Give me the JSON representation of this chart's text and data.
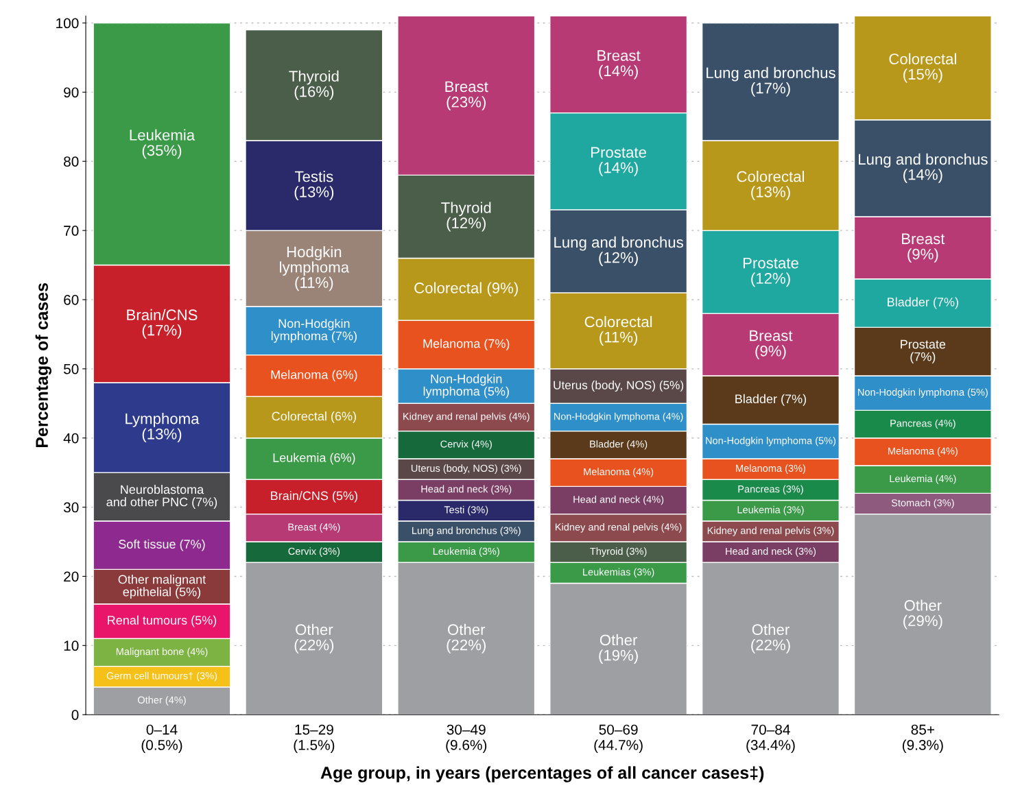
{
  "chart_data": {
    "type": "bar",
    "stacked": true,
    "xlabel": "Age group, in years (percentages of all cancer cases‡)",
    "ylabel": "Percentage of cases",
    "categories": [
      "0–14\n(0.5%)",
      "15–29\n(1.5%)",
      "30–49\n(9.6%)",
      "50–69\n(44.7%)",
      "70–84\n(34.4%)",
      "85+\n(9.3%)"
    ],
    "ylim": [
      0,
      101
    ],
    "yticks": [
      0,
      10,
      20,
      30,
      40,
      50,
      60,
      70,
      80,
      90,
      100
    ],
    "grid": "y",
    "legend": false,
    "series": [
      {
        "values": [
          4,
          22,
          22,
          19,
          22,
          29
        ],
        "colors": [
          "#9d9fa2",
          "#9d9fa2",
          "#9d9fa2",
          "#9d9fa2",
          "#9d9fa2",
          "#9d9fa2"
        ],
        "value_labels": [
          "Other (4%)",
          "Other\n(22%)",
          "Other\n(22%)",
          "Other\n(19%)",
          "Other\n(22%)",
          "Other\n(29%)"
        ]
      },
      {
        "values": [
          3,
          3,
          3,
          3,
          3,
          3
        ],
        "colors": [
          "#f5c018",
          "#16693a",
          "#3a9a48",
          "#3a9a48",
          "#7a3e64",
          "#8e5a7e"
        ],
        "value_labels": [
          "Germ cell tumours† (3%)",
          "Cervix (3%)",
          "Leukemia (3%)",
          "Leukemias (3%)",
          "Head and neck (3%)",
          "Stomach (3%)"
        ]
      },
      {
        "values": [
          4,
          4,
          3,
          3,
          3,
          4
        ],
        "colors": [
          "#7cb342",
          "#b83a74",
          "#3a5068",
          "#4a5e4a",
          "#8c4a4e",
          "#3a9a48"
        ],
        "value_labels": [
          "Malignant bone (4%)",
          "Breast (4%)",
          "Lung and bronchus (3%)",
          "Thyroid (3%)",
          "Kidney and renal pelvis (3%)",
          "Leukemia (4%)"
        ]
      },
      {
        "values": [
          5,
          5,
          3,
          4,
          3,
          4
        ],
        "colors": [
          "#e8156b",
          "#c8202a",
          "#2a2a6a",
          "#8c4a4e",
          "#3a9a48",
          "#e8521e"
        ],
        "value_labels": [
          "Renal tumours (5%)",
          "Brain/CNS (5%)",
          "Testi (3%)",
          "Kidney and renal pelvis (4%)",
          "Leukemia (3%)",
          "Melanoma (4%)"
        ]
      },
      {
        "values": [
          5,
          6,
          3,
          4,
          3,
          4
        ],
        "colors": [
          "#8a3a3a",
          "#3a9a48",
          "#7a3e64",
          "#7a3e64",
          "#1a8a4a",
          "#1a8a4a"
        ],
        "value_labels": [
          "Other malignant\nepithelial (5%)",
          "Leukemia (6%)",
          "Head and neck (3%)",
          "Head and neck (4%)",
          "Pancreas (3%)",
          "Pancreas (4%)"
        ]
      },
      {
        "values": [
          7,
          6,
          3,
          4,
          3,
          5
        ],
        "colors": [
          "#8e2a8f",
          "#b8981a",
          "#5a4848",
          "#e8521e",
          "#e8521e",
          "#2f8fc8"
        ],
        "value_labels": [
          "Soft tissue (7%)",
          "Colorectal (6%)",
          "Uterus (body, NOS) (3%)",
          "Melanoma (4%)",
          "Melanoma (3%)",
          "Non-Hodgkin lymphoma (5%)"
        ]
      },
      {
        "values": [
          7,
          6,
          4,
          4,
          5,
          7
        ],
        "colors": [
          "#4a4a4c",
          "#e8521e",
          "#16693a",
          "#5a3a1a",
          "#2f8fc8",
          "#5a3a1a"
        ],
        "value_labels": [
          "Neuroblastoma\nand other PNC (7%)",
          "Melanoma (6%)",
          "Cervix (4%)",
          "Bladder (4%)",
          "Non-Hodgkin lymphoma (5%)",
          "Prostate\n(7%)"
        ]
      },
      {
        "values": [
          13,
          7,
          4,
          4,
          7,
          7
        ],
        "colors": [
          "#2e3a8c",
          "#2f8fc8",
          "#8c4a4e",
          "#2f8fc8",
          "#5a3a1a",
          "#1fa8a0"
        ],
        "value_labels": [
          "Lymphoma\n(13%)",
          "Non-Hodgkin\nlymphoma (7%)",
          "Kidney and renal pelvis (4%)",
          "Non-Hodgkin lymphoma (4%)",
          "Bladder (7%)",
          "Bladder (7%)"
        ]
      },
      {
        "values": [
          17,
          11,
          5,
          5,
          9,
          9
        ],
        "colors": [
          "#c8202a",
          "#9a8478",
          "#2f8fc8",
          "#5a4848",
          "#b83a74",
          "#b83a74"
        ],
        "value_labels": [
          "Brain/CNS\n(17%)",
          "Hodgkin\nlymphoma\n(11%)",
          "Non-Hodgkin\nlymphoma (5%)",
          "Uterus (body, NOS) (5%)",
          "Breast\n(9%)",
          "Breast\n(9%)"
        ]
      },
      {
        "values": [
          35,
          13,
          7,
          11,
          12,
          14
        ],
        "colors": [
          "#3a9a48",
          "#2a2a6a",
          "#e8521e",
          "#b8981a",
          "#1fa8a0",
          "#3a5068"
        ],
        "value_labels": [
          "Leukemia\n(35%)",
          "Testis\n(13%)",
          "Melanoma (7%)",
          "Colorectal\n(11%)",
          "Prostate\n(12%)",
          "Lung and bronchus\n(14%)"
        ]
      },
      {
        "values": [
          null,
          16,
          9,
          12,
          13,
          15
        ],
        "colors": [
          null,
          "#4a5e4a",
          "#b8981a",
          "#3a5068",
          "#b8981a",
          "#b8981a"
        ],
        "value_labels": [
          null,
          "Thyroid\n(16%)",
          "Colorectal (9%)",
          "Lung and bronchus\n(12%)",
          "Colorectal\n(13%)",
          "Colorectal\n(15%)"
        ]
      },
      {
        "values": [
          null,
          null,
          12,
          14,
          17,
          null
        ],
        "colors": [
          null,
          null,
          "#4a5e4a",
          "#1fa8a0",
          "#3a5068",
          null
        ],
        "value_labels": [
          null,
          null,
          "Thyroid\n(12%)",
          "Prostate\n(14%)",
          "Lung and bronchus\n(17%)",
          null
        ]
      },
      {
        "values": [
          null,
          null,
          23,
          14,
          null,
          null
        ],
        "colors": [
          null,
          null,
          "#b83a74",
          "#b83a74",
          null,
          null
        ],
        "value_labels": [
          null,
          null,
          "Breast\n(23%)",
          "Breast\n(14%)",
          null,
          null
        ]
      }
    ]
  }
}
